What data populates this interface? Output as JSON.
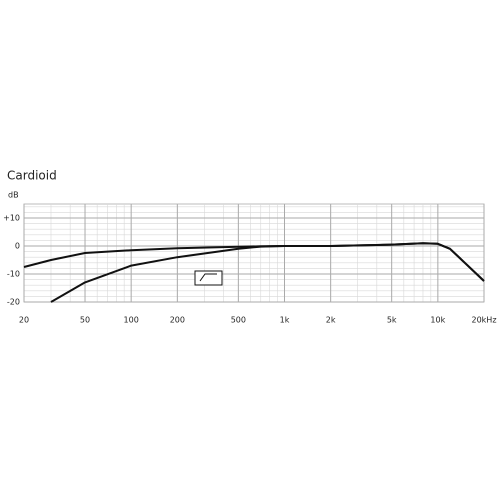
{
  "chart_data": {
    "type": "line",
    "title": "Cardioid",
    "y_label": "dB",
    "x": [
      20,
      30,
      50,
      100,
      200,
      500,
      700,
      1000,
      2000,
      5000,
      8000,
      10000,
      12000,
      15000,
      20000
    ],
    "series": [
      {
        "color": "#111111",
        "values": [
          -7.5,
          -5,
          -2.5,
          -1.5,
          -0.8,
          -0.3,
          -0.1,
          0,
          0,
          0.5,
          1,
          0.8,
          -1,
          -6,
          -12.5
        ]
      },
      {
        "color": "#111111",
        "values": [
          null,
          -20,
          -13,
          -7,
          -4,
          -1,
          -0.2,
          0,
          0,
          0.5,
          1,
          0.8,
          -1,
          -6,
          -12.5
        ]
      }
    ],
    "log_x": true,
    "grid": true,
    "xlim": [
      20,
      20000
    ],
    "xticks": [
      20,
      50,
      100,
      200,
      500,
      {
        "value": 1000,
        "label": "1k"
      },
      {
        "value": 2000,
        "label": "2k"
      },
      {
        "value": 5000,
        "label": "5k"
      },
      {
        "value": 10000,
        "label": "10k"
      },
      {
        "value": 20000,
        "label": "20kHz"
      }
    ],
    "ylim": [
      -20,
      15
    ],
    "yticks": [
      -20,
      -10,
      0,
      {
        "value": 10,
        "label": "+10"
      }
    ]
  }
}
